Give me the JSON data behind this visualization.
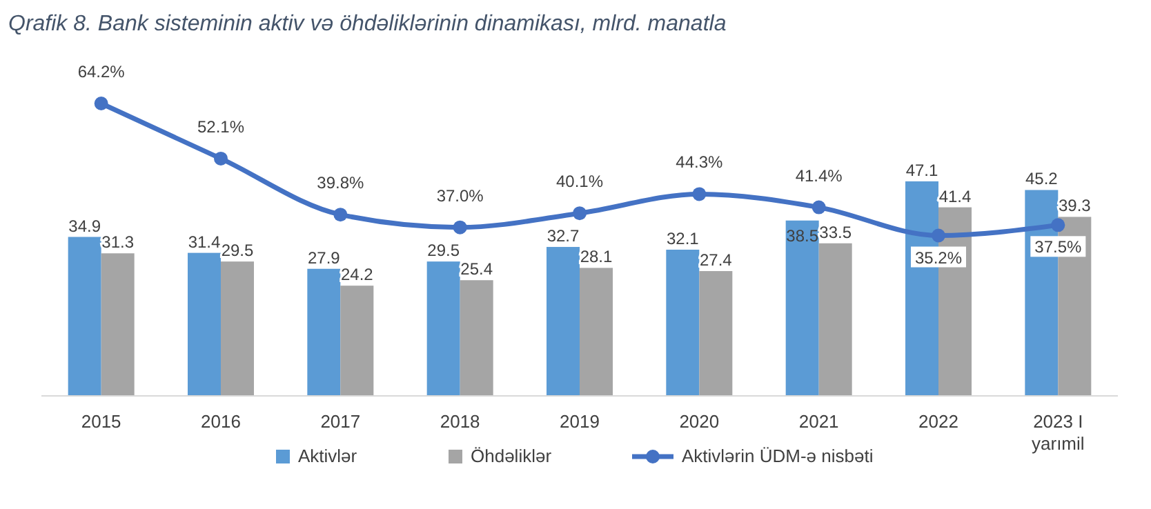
{
  "chart_data": {
    "type": "bar",
    "title": "Qrafik 8. Bank sisteminin aktiv və öhdəliklərinin dinamikası, mlrd. manatla",
    "categories": [
      "2015",
      "2016",
      "2017",
      "2018",
      "2019",
      "2020",
      "2021",
      "2022",
      "2023 I\nyarımil"
    ],
    "series": [
      {
        "name": "Aktivlər",
        "color": "#5b9bd5",
        "values": [
          34.9,
          31.4,
          27.9,
          29.5,
          32.7,
          32.1,
          38.5,
          47.1,
          45.2
        ]
      },
      {
        "name": "Öhdəliklər",
        "color": "#a5a5a5",
        "values": [
          31.3,
          29.5,
          24.2,
          25.4,
          28.1,
          27.4,
          33.5,
          41.4,
          39.3
        ]
      },
      {
        "name": "Aktivlərin ÜDM-ə nisbəti",
        "type": "line",
        "color": "#4472c4",
        "marker": "circle",
        "values": [
          64.2,
          52.1,
          39.8,
          37.0,
          40.1,
          44.3,
          41.4,
          35.2,
          37.5
        ],
        "value_labels": [
          "64.2%",
          "52.1%",
          "39.8%",
          "37.0%",
          "40.1%",
          "44.3%",
          "41.4%",
          "35.2%",
          "37.5%"
        ]
      }
    ],
    "tick_labels": "x",
    "data_labels": true,
    "legend": "bottom",
    "grid": false
  }
}
